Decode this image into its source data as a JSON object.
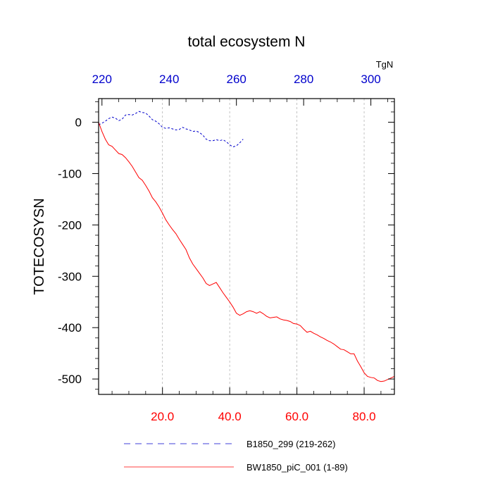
{
  "chart_data": {
    "type": "line",
    "title": "total ecosystem N",
    "ylabel": "TOTECOSYSN",
    "units": "TgN",
    "ylim": [
      -530,
      46
    ],
    "yticks": [
      0,
      -100,
      -200,
      -300,
      -400,
      -500
    ],
    "ytick_labels": [
      "0",
      "-100",
      "-200",
      "-300",
      "-400",
      "-500"
    ],
    "bottom_axis": {
      "xlim": [
        1,
        89
      ],
      "ticks": [
        20,
        40,
        60,
        80
      ],
      "tick_labels": [
        "20.0",
        "40.0",
        "60.0",
        "80.0"
      ],
      "color": "#ff0000"
    },
    "top_axis": {
      "xlim": [
        219,
        307
      ],
      "ticks": [
        220,
        240,
        260,
        280,
        300
      ],
      "tick_labels": [
        "220",
        "240",
        "260",
        "280",
        "300"
      ],
      "color": "#0000cc"
    },
    "grid_x": true,
    "legend_position": "bottom",
    "series": [
      {
        "name": "B1850_299 (219-262)",
        "axis": "top",
        "color": "#0000cc",
        "dash": "dashed",
        "x": [
          219,
          220,
          221,
          222,
          223,
          224,
          225,
          226,
          227,
          228,
          229,
          230,
          231,
          232,
          233,
          234,
          235,
          236,
          237,
          238,
          239,
          240,
          241,
          242,
          243,
          244,
          245,
          246,
          247,
          248,
          249,
          250,
          251,
          252,
          253,
          254,
          255,
          256,
          257,
          258,
          259,
          260,
          261,
          262
        ],
        "y": [
          -5,
          -2,
          2,
          7,
          10,
          8,
          3,
          6,
          14,
          15,
          14,
          17,
          21,
          19,
          18,
          12,
          5,
          2,
          -3,
          -10,
          -12,
          -11,
          -13,
          -15,
          -14,
          -10,
          -13,
          -15,
          -18,
          -17,
          -20,
          -25,
          -33,
          -36,
          -36,
          -34,
          -36,
          -34,
          -38,
          -44,
          -48,
          -46,
          -40,
          -33
        ]
      },
      {
        "name": "BW1850_piC_001 (1-89)",
        "axis": "bottom",
        "color": "#ff0000",
        "dash": "solid",
        "x": [
          1,
          2,
          3,
          4,
          5,
          6,
          7,
          8,
          9,
          10,
          11,
          12,
          13,
          14,
          15,
          16,
          17,
          18,
          19,
          20,
          21,
          22,
          23,
          24,
          25,
          26,
          27,
          28,
          29,
          30,
          31,
          32,
          33,
          34,
          35,
          36,
          37,
          38,
          39,
          40,
          41,
          42,
          43,
          44,
          45,
          46,
          47,
          48,
          49,
          50,
          51,
          52,
          53,
          54,
          55,
          56,
          57,
          58,
          59,
          60,
          61,
          62,
          63,
          64,
          65,
          66,
          67,
          68,
          69,
          70,
          71,
          72,
          73,
          74,
          75,
          76,
          77,
          78,
          79,
          80,
          81,
          82,
          83,
          84,
          85,
          86,
          87,
          88,
          89
        ],
        "y": [
          0,
          -18,
          -33,
          -44,
          -47,
          -54,
          -61,
          -63,
          -69,
          -77,
          -86,
          -97,
          -108,
          -113,
          -123,
          -134,
          -147,
          -155,
          -165,
          -177,
          -190,
          -200,
          -209,
          -217,
          -228,
          -238,
          -248,
          -264,
          -276,
          -285,
          -294,
          -303,
          -314,
          -318,
          -315,
          -312,
          -322,
          -332,
          -341,
          -350,
          -360,
          -372,
          -376,
          -373,
          -369,
          -367,
          -369,
          -372,
          -369,
          -373,
          -378,
          -381,
          -380,
          -379,
          -383,
          -385,
          -386,
          -388,
          -392,
          -393,
          -396,
          -403,
          -409,
          -407,
          -411,
          -414,
          -418,
          -421,
          -425,
          -428,
          -432,
          -437,
          -442,
          -443,
          -447,
          -451,
          -451,
          -465,
          -476,
          -488,
          -495,
          -497,
          -498,
          -503,
          -505,
          -504,
          -501,
          -498,
          -495
        ]
      }
    ]
  }
}
